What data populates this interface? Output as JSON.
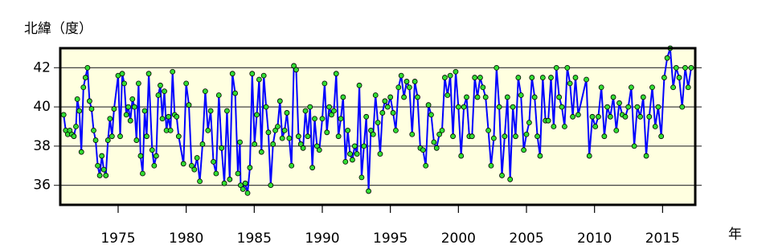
{
  "chart_data": {
    "type": "line",
    "y_label": "北緯（度）",
    "x_label": "年",
    "line_color": "#0000ff",
    "marker_color": "#33dd33",
    "background": "#ffffe0",
    "grid": true,
    "xlim": [
      1970.75,
      2017.4
    ],
    "ylim": [
      35,
      43
    ],
    "xticks": [
      1975,
      1980,
      1985,
      1990,
      1995,
      2000,
      2005,
      2010,
      2015
    ],
    "yticks": [
      36,
      38,
      40,
      42
    ],
    "x": [
      1971.0,
      1971.15,
      1971.3,
      1971.45,
      1971.6,
      1971.75,
      1971.9,
      1972.0,
      1972.15,
      1972.3,
      1972.45,
      1972.6,
      1972.75,
      1972.9,
      1973.05,
      1973.2,
      1973.35,
      1973.5,
      1973.65,
      1973.8,
      1973.95,
      1974.1,
      1974.25,
      1974.4,
      1974.55,
      1974.7,
      1975.0,
      1975.15,
      1975.3,
      1975.45,
      1975.6,
      1975.75,
      1975.9,
      1976.05,
      1976.2,
      1976.35,
      1976.5,
      1976.65,
      1976.8,
      1976.95,
      1977.1,
      1977.25,
      1977.5,
      1977.65,
      1977.8,
      1977.95,
      1978.1,
      1978.25,
      1978.4,
      1978.55,
      1978.7,
      1978.85,
      1979.0,
      1979.15,
      1979.3,
      1979.45,
      1979.8,
      1980.0,
      1980.2,
      1980.4,
      1980.6,
      1980.8,
      1981.0,
      1981.2,
      1981.4,
      1981.6,
      1981.8,
      1982.0,
      1982.2,
      1982.4,
      1982.6,
      1982.8,
      1983.0,
      1983.2,
      1983.4,
      1983.6,
      1983.8,
      1983.95,
      1984.0,
      1984.17,
      1984.34,
      1984.51,
      1984.68,
      1984.85,
      1985.02,
      1985.19,
      1985.36,
      1985.53,
      1985.7,
      1985.87,
      1986.04,
      1986.21,
      1986.38,
      1986.55,
      1986.72,
      1986.89,
      1987.06,
      1987.23,
      1987.4,
      1987.57,
      1987.74,
      1987.91,
      1988.08,
      1988.25,
      1988.42,
      1988.59,
      1988.76,
      1988.93,
      1989.1,
      1989.27,
      1989.44,
      1989.61,
      1989.78,
      1990.0,
      1990.17,
      1990.34,
      1990.51,
      1990.68,
      1990.85,
      1991.02,
      1991.19,
      1991.36,
      1991.53,
      1991.7,
      1991.87,
      1992.04,
      1992.21,
      1992.38,
      1992.55,
      1992.72,
      1992.89,
      1993.06,
      1993.23,
      1993.4,
      1993.57,
      1993.74,
      1993.91,
      1994.08,
      1994.25,
      1994.42,
      1994.6,
      1994.8,
      1995.0,
      1995.2,
      1995.4,
      1995.6,
      1995.8,
      1996.0,
      1996.2,
      1996.4,
      1996.6,
      1996.8,
      1997.0,
      1997.2,
      1997.4,
      1997.6,
      1997.8,
      1998.0,
      1998.2,
      1998.4,
      1998.6,
      1998.8,
      1999.0,
      1999.2,
      1999.4,
      1999.6,
      1999.8,
      2000.0,
      2000.2,
      2000.4,
      2000.6,
      2000.8,
      2001.0,
      2001.2,
      2001.4,
      2001.6,
      2001.8,
      2002.0,
      2002.2,
      2002.4,
      2002.6,
      2002.8,
      2003.0,
      2003.2,
      2003.4,
      2003.6,
      2003.8,
      2004.0,
      2004.2,
      2004.4,
      2004.6,
      2004.8,
      2005.0,
      2005.2,
      2005.4,
      2005.6,
      2005.8,
      2006.0,
      2006.2,
      2006.4,
      2006.6,
      2006.8,
      2007.0,
      2007.2,
      2007.4,
      2007.6,
      2007.8,
      2008.0,
      2008.2,
      2008.4,
      2008.6,
      2008.8,
      2009.4,
      2009.62,
      2009.84,
      2010.06,
      2010.28,
      2010.5,
      2010.72,
      2010.94,
      2011.16,
      2011.38,
      2011.6,
      2011.82,
      2012.04,
      2012.26,
      2012.48,
      2012.7,
      2012.92,
      2013.14,
      2013.36,
      2013.58,
      2013.8,
      2014.02,
      2014.24,
      2014.46,
      2014.68,
      2014.9,
      2015.12,
      2015.34,
      2015.56,
      2015.78,
      2016.0,
      2016.22,
      2016.44,
      2016.66,
      2016.88,
      2017.1
    ],
    "values": [
      39.6,
      38.8,
      38.6,
      38.8,
      38.6,
      38.5,
      39.0,
      40.4,
      39.8,
      37.7,
      41.0,
      41.5,
      42.0,
      40.3,
      39.9,
      38.8,
      38.3,
      37.0,
      36.5,
      37.5,
      36.8,
      36.5,
      38.3,
      39.4,
      38.5,
      39.9,
      41.6,
      38.5,
      41.7,
      41.2,
      39.6,
      40.0,
      39.3,
      40.4,
      40.0,
      38.3,
      41.2,
      37.5,
      36.6,
      39.8,
      38.5,
      41.7,
      37.8,
      37.0,
      37.5,
      40.6,
      41.1,
      39.4,
      40.8,
      38.8,
      39.5,
      38.8,
      41.8,
      39.6,
      39.5,
      38.5,
      37.1,
      41.2,
      40.1,
      37.0,
      36.8,
      37.4,
      36.2,
      38.1,
      40.8,
      38.8,
      39.8,
      37.2,
      36.6,
      40.6,
      37.9,
      36.1,
      39.8,
      36.3,
      41.7,
      40.7,
      36.6,
      38.2,
      36.0,
      35.8,
      36.1,
      35.6,
      36.9,
      41.7,
      38.1,
      39.6,
      41.4,
      37.7,
      41.6,
      40.0,
      38.7,
      36.0,
      38.1,
      38.8,
      39.0,
      40.3,
      38.4,
      38.8,
      39.7,
      38.4,
      37.0,
      42.1,
      41.9,
      38.5,
      38.1,
      37.9,
      39.8,
      38.5,
      40.0,
      36.9,
      39.4,
      38.0,
      37.8,
      39.4,
      41.2,
      38.7,
      40.0,
      39.6,
      39.8,
      41.7,
      38.5,
      39.4,
      40.5,
      37.2,
      38.8,
      37.6,
      37.3,
      38.0,
      37.6,
      41.1,
      36.4,
      38.0,
      39.5,
      35.7,
      38.8,
      38.6,
      40.6,
      39.2,
      37.6,
      39.7,
      40.3,
      40.0,
      40.5,
      39.7,
      38.8,
      41.0,
      41.6,
      40.5,
      41.3,
      41.0,
      38.6,
      41.3,
      40.5,
      37.9,
      37.8,
      37.0,
      40.1,
      39.6,
      38.2,
      37.9,
      38.6,
      38.8,
      41.5,
      40.6,
      41.6,
      38.5,
      41.8,
      40.0,
      37.5,
      40.0,
      40.5,
      38.5,
      38.5,
      41.5,
      40.5,
      41.5,
      41.0,
      40.5,
      38.8,
      37.0,
      38.4,
      42.0,
      40.0,
      36.5,
      38.5,
      40.5,
      36.3,
      40.0,
      38.5,
      41.5,
      40.6,
      37.8,
      38.6,
      39.2,
      41.5,
      40.5,
      38.5,
      37.5,
      41.5,
      39.3,
      39.3,
      41.5,
      39.0,
      42.0,
      40.5,
      40.0,
      39.0,
      42.0,
      41.2,
      39.5,
      41.5,
      39.6,
      41.4,
      37.5,
      39.5,
      39.0,
      39.5,
      41.0,
      38.5,
      40.0,
      39.5,
      40.5,
      38.8,
      40.2,
      39.6,
      39.5,
      40.0,
      41.0,
      38.0,
      40.0,
      39.5,
      40.5,
      37.5,
      39.5,
      41.0,
      39.0,
      40.0,
      38.5,
      41.5,
      42.5,
      43.0,
      41.0,
      42.0,
      41.5,
      40.0,
      42.0,
      41.0,
      42.0
    ]
  }
}
